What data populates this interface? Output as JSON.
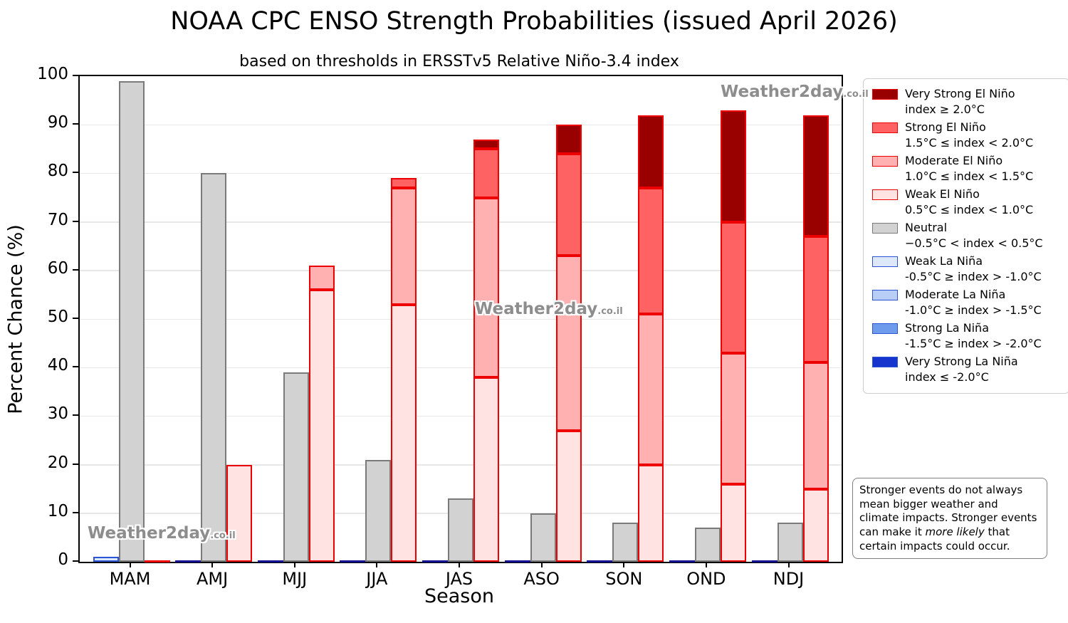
{
  "title": "NOAA CPC ENSO Strength Probabilities (issued April 2026)",
  "subtitle": "based on thresholds in ERSSTv5 Relative Niño-3.4 index",
  "watermark": {
    "main": "Weather2day",
    "suffix": ".co.il"
  },
  "note": {
    "pre": "Stronger events do not always mean bigger weather and climate impacts. Stronger events can make it ",
    "italic": "more likely",
    "post": " that certain impacts could occur."
  },
  "legend": {
    "items": [
      {
        "name": "Very Strong El Niño",
        "range": "index ≥ 2.0°C",
        "fill": "#990000",
        "edge": "#ee0000"
      },
      {
        "name": "Strong El Niño",
        "range": "1.5°C ≤ index < 2.0°C",
        "fill": "#ff6262",
        "edge": "#ee0000"
      },
      {
        "name": "Moderate El Niño",
        "range": "1.0°C ≤ index < 1.5°C",
        "fill": "#ffb0b0",
        "edge": "#ee0000"
      },
      {
        "name": "Weak El Niño",
        "range": "0.5°C ≤ index < 1.0°C",
        "fill": "#ffe3e3",
        "edge": "#ee0000"
      },
      {
        "name": "Neutral",
        "range": "−0.5°C < index < 0.5°C",
        "fill": "#d2d2d2",
        "edge": "#7a7a7a"
      },
      {
        "name": "Weak La Niña",
        "range": "-0.5°C ≥ index > -1.0°C",
        "fill": "#dde9fb",
        "edge": "#2b55d4"
      },
      {
        "name": "Moderate La Niña",
        "range": "-1.0°C ≥ index > -1.5°C",
        "fill": "#b9cef6",
        "edge": "#2b55d4"
      },
      {
        "name": "Strong La Niña",
        "range": "-1.5°C ≥ index > -2.0°C",
        "fill": "#6f9bed",
        "edge": "#2b55d4"
      },
      {
        "name": "Very Strong La Niña",
        "range": "index ≤ -2.0°C",
        "fill": "#1535cd",
        "edge": "#2b55d4"
      }
    ]
  },
  "chart_data": {
    "type": "bar",
    "variant": "grouped-stacked",
    "title": "NOAA CPC ENSO Strength Probabilities (issued April 2026)",
    "subtitle": "based on thresholds in ERSSTv5 Relative Niño-3.4 index",
    "xlabel": "Season",
    "ylabel": "Percent Chance (%)",
    "ylim": [
      0,
      100
    ],
    "yticks": [
      0,
      10,
      20,
      30,
      40,
      50,
      60,
      70,
      80,
      90,
      100
    ],
    "grid": true,
    "legend_position": "right-outside",
    "categories": [
      "MAM",
      "AMJ",
      "MJJ",
      "JJA",
      "JAS",
      "ASO",
      "SON",
      "OND",
      "NDJ"
    ],
    "stack_order": [
      "weak",
      "moderate",
      "strong",
      "very_strong"
    ],
    "bars_per_group": [
      "la_nina",
      "neutral",
      "el_nino"
    ],
    "groups": [
      {
        "season": "MAM",
        "la_nina": {
          "weak": 1,
          "moderate": 0,
          "strong": 0,
          "very_strong": 0
        },
        "neutral": 99,
        "el_nino": {
          "weak": 0,
          "moderate": 0,
          "strong": 0,
          "very_strong": 0
        }
      },
      {
        "season": "AMJ",
        "la_nina": {
          "weak": 0,
          "moderate": 0,
          "strong": 0,
          "very_strong": 0
        },
        "neutral": 80,
        "el_nino": {
          "weak": 20,
          "moderate": 0,
          "strong": 0,
          "very_strong": 0
        }
      },
      {
        "season": "MJJ",
        "la_nina": {
          "weak": 0,
          "moderate": 0,
          "strong": 0,
          "very_strong": 0
        },
        "neutral": 39,
        "el_nino": {
          "weak": 56,
          "moderate": 5,
          "strong": 0,
          "very_strong": 0
        }
      },
      {
        "season": "JJA",
        "la_nina": {
          "weak": 0,
          "moderate": 0,
          "strong": 0,
          "very_strong": 0
        },
        "neutral": 21,
        "el_nino": {
          "weak": 53,
          "moderate": 24,
          "strong": 2,
          "very_strong": 0
        }
      },
      {
        "season": "JAS",
        "la_nina": {
          "weak": 0,
          "moderate": 0,
          "strong": 0,
          "very_strong": 0
        },
        "neutral": 13,
        "el_nino": {
          "weak": 38,
          "moderate": 37,
          "strong": 10,
          "very_strong": 2
        }
      },
      {
        "season": "ASO",
        "la_nina": {
          "weak": 0,
          "moderate": 0,
          "strong": 0,
          "very_strong": 0
        },
        "neutral": 10,
        "el_nino": {
          "weak": 27,
          "moderate": 36,
          "strong": 21,
          "very_strong": 6
        }
      },
      {
        "season": "SON",
        "la_nina": {
          "weak": 0,
          "moderate": 0,
          "strong": 0,
          "very_strong": 0
        },
        "neutral": 8,
        "el_nino": {
          "weak": 20,
          "moderate": 31,
          "strong": 26,
          "very_strong": 15
        }
      },
      {
        "season": "OND",
        "la_nina": {
          "weak": 0,
          "moderate": 0,
          "strong": 0,
          "very_strong": 0
        },
        "neutral": 7,
        "el_nino": {
          "weak": 16,
          "moderate": 27,
          "strong": 27,
          "very_strong": 23
        }
      },
      {
        "season": "NDJ",
        "la_nina": {
          "weak": 0,
          "moderate": 0,
          "strong": 0,
          "very_strong": 0
        },
        "neutral": 8,
        "el_nino": {
          "weak": 15,
          "moderate": 26,
          "strong": 26,
          "very_strong": 25
        }
      }
    ],
    "colors": {
      "el_nino": {
        "weak": "#ffe3e3",
        "moderate": "#ffb0b0",
        "strong": "#ff6262",
        "very_strong": "#990000",
        "edge": "#ee0000",
        "zero_line": "#ee0000"
      },
      "neutral": {
        "fill": "#d2d2d2",
        "edge": "#7a7a7a"
      },
      "la_nina": {
        "weak": "#dde9fb",
        "moderate": "#b9cef6",
        "strong": "#6f9bed",
        "very_strong": "#1535cd",
        "edge": "#2b55d4",
        "zero_line": "#12128f"
      }
    }
  }
}
